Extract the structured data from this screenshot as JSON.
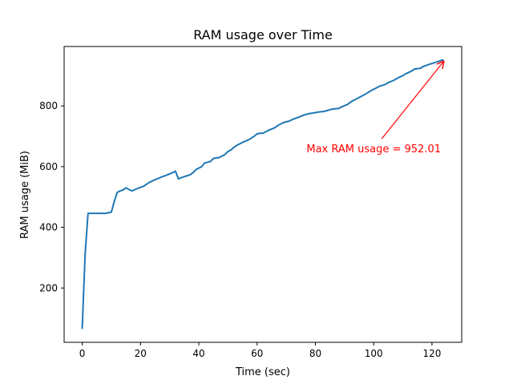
{
  "chart_data": {
    "type": "line",
    "title": "RAM usage over Time",
    "xlabel": "Time (sec)",
    "ylabel": "RAM usage (MiB)",
    "xlim": [
      -6.2,
      130.2
    ],
    "ylim": [
      21,
      996
    ],
    "xticks": [
      0,
      20,
      40,
      60,
      80,
      100,
      120
    ],
    "yticks": [
      200,
      400,
      600,
      800
    ],
    "grid": false,
    "series": [
      {
        "color": "#1f77b4",
        "x": [
          0,
          1,
          2,
          4,
          6,
          8,
          9,
          10,
          11,
          12,
          13,
          14,
          15,
          17,
          19,
          21,
          23,
          25,
          27,
          29,
          30,
          31,
          32,
          33,
          35,
          37,
          38,
          39,
          41,
          42,
          44,
          45,
          47,
          49,
          50,
          51,
          52,
          53,
          55,
          57,
          59,
          60,
          61,
          62,
          64,
          66,
          67,
          68,
          69,
          70,
          71,
          72,
          74,
          76,
          78,
          80,
          81,
          83,
          84,
          86,
          88,
          89,
          91,
          92,
          93,
          95,
          97,
          99,
          101,
          102,
          104,
          105,
          107,
          108,
          110,
          111,
          113,
          114,
          116,
          117,
          119,
          120,
          122,
          123,
          124
        ],
        "y": [
          65,
          310,
          446,
          446,
          446,
          446,
          448,
          450,
          485,
          515,
          520,
          523,
          530,
          520,
          528,
          535,
          548,
          557,
          565,
          572,
          576,
          580,
          585,
          560,
          567,
          573,
          580,
          590,
          600,
          612,
          617,
          627,
          630,
          640,
          650,
          655,
          663,
          670,
          680,
          688,
          700,
          708,
          710,
          710,
          720,
          728,
          735,
          740,
          745,
          748,
          750,
          755,
          762,
          770,
          775,
          778,
          780,
          782,
          785,
          790,
          792,
          797,
          805,
          812,
          818,
          828,
          838,
          850,
          860,
          865,
          871,
          877,
          885,
          891,
          900,
          906,
          915,
          922,
          924,
          930,
          937,
          940,
          946,
          950,
          952.01
        ]
      }
    ],
    "annotation": {
      "text": "Max RAM usage = 952.01",
      "color": "#ff0000",
      "point": [
        124,
        952.01
      ],
      "text_anchor": [
        100,
        660
      ]
    }
  }
}
